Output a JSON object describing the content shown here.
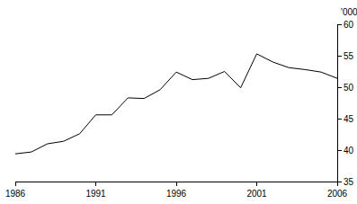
{
  "chart_data": {
    "type": "line",
    "x": [
      1986,
      1987,
      1988,
      1989,
      1990,
      1991,
      1992,
      1993,
      1994,
      1995,
      1996,
      1997,
      1998,
      1999,
      2000,
      2001,
      2002,
      2003,
      2004,
      2005,
      2006
    ],
    "values": [
      39.4,
      39.7,
      41.0,
      41.4,
      42.6,
      45.6,
      45.6,
      48.3,
      48.2,
      49.6,
      52.4,
      51.2,
      51.4,
      52.5,
      49.9,
      55.3,
      54.0,
      53.1,
      52.8,
      52.4,
      51.4
    ],
    "color": "#000000",
    "y_label": "'000",
    "xlim": [
      1986,
      2006
    ],
    "xticks": [
      1986,
      1991,
      1996,
      2001,
      2006
    ],
    "ylim": [
      35,
      60
    ],
    "yticks": [
      35,
      40,
      45,
      50,
      55,
      60
    ],
    "grid": false
  }
}
